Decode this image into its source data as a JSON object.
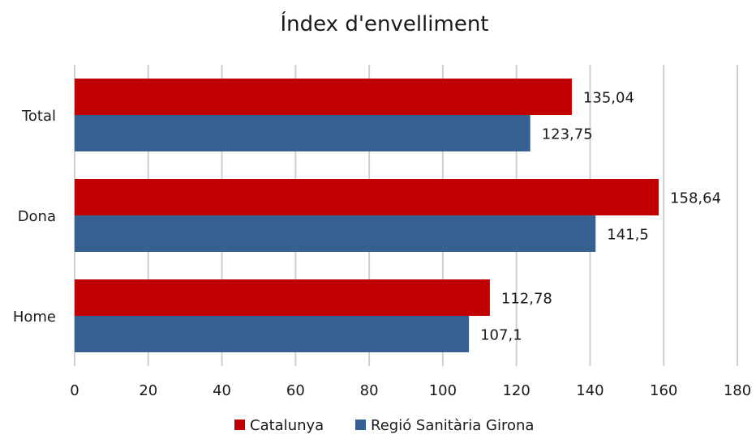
{
  "chart_data": {
    "type": "bar",
    "orientation": "horizontal",
    "title": "Índex d'envelliment",
    "categories": [
      "Total",
      "Dona",
      "Home"
    ],
    "series": [
      {
        "name": "Catalunya",
        "color": "#c00000",
        "values": [
          135.04,
          158.64,
          112.78
        ],
        "labels": [
          "135,04",
          "158,64",
          "112,78"
        ]
      },
      {
        "name": "Regió Sanitària Girona",
        "color": "#376092",
        "values": [
          123.75,
          141.5,
          107.1
        ],
        "labels": [
          "123,75",
          "141,5",
          "107,1"
        ]
      }
    ],
    "xlim": [
      0,
      180
    ],
    "xticks": [
      0,
      20,
      40,
      60,
      80,
      100,
      120,
      140,
      160,
      180
    ],
    "grid": true,
    "legend": "bottom"
  }
}
